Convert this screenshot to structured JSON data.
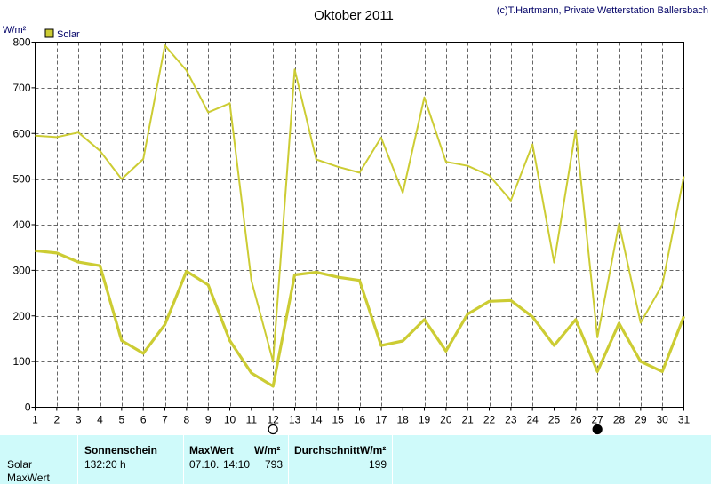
{
  "chart_data": {
    "type": "line",
    "title": "Oktober 2011",
    "copyright": "(c)T.Hartmann, Private Wetterstation Ballersbach",
    "ylabel": "W/m²",
    "ylim": [
      0,
      800
    ],
    "yticks": [
      0,
      100,
      200,
      300,
      400,
      500,
      600,
      700,
      800
    ],
    "xlim": [
      1,
      31
    ],
    "x": [
      1,
      2,
      3,
      4,
      5,
      6,
      7,
      8,
      9,
      10,
      11,
      12,
      13,
      14,
      15,
      16,
      17,
      18,
      19,
      20,
      21,
      22,
      23,
      24,
      25,
      26,
      27,
      28,
      29,
      30,
      31
    ],
    "grid": true,
    "legend_position": "top-left",
    "legend": [
      "Solar"
    ],
    "series": [
      {
        "name": "Solar",
        "role": "daily maximum",
        "color": "#cccc33",
        "values": [
          595,
          592,
          602,
          562,
          500,
          544,
          793,
          738,
          646,
          666,
          278,
          100,
          740,
          543,
          527,
          514,
          591,
          470,
          679,
          538,
          529,
          508,
          453,
          576,
          317,
          607,
          153,
          402,
          185,
          268,
          506
        ]
      },
      {
        "name": "Solar",
        "role": "daily average",
        "color": "#cccc33",
        "values": [
          343,
          338,
          318,
          310,
          146,
          118,
          181,
          298,
          268,
          146,
          75,
          46,
          290,
          296,
          285,
          278,
          135,
          145,
          192,
          123,
          204,
          232,
          234,
          198,
          135,
          192,
          78,
          184,
          100,
          78,
          199
        ]
      }
    ],
    "moon_markers": [
      {
        "day": 12,
        "phase": "full-moon-icon"
      },
      {
        "day": 27,
        "phase": "new-moon-icon"
      }
    ]
  },
  "footer": {
    "headers": {
      "sunshine": "Sonnenschein",
      "max": "MaxWert",
      "max_unit": "W/m²",
      "avg": "DurchschnittW/m²"
    },
    "rows": [
      {
        "label": "Solar",
        "sunshine": "132:20 h",
        "max_date": "07.10.",
        "max_time": "14:10",
        "max_value": "793",
        "avg": "199"
      },
      {
        "label": "MaxWert",
        "sunshine": "",
        "max_date": "",
        "max_time": "",
        "max_value": "",
        "avg": ""
      }
    ]
  }
}
